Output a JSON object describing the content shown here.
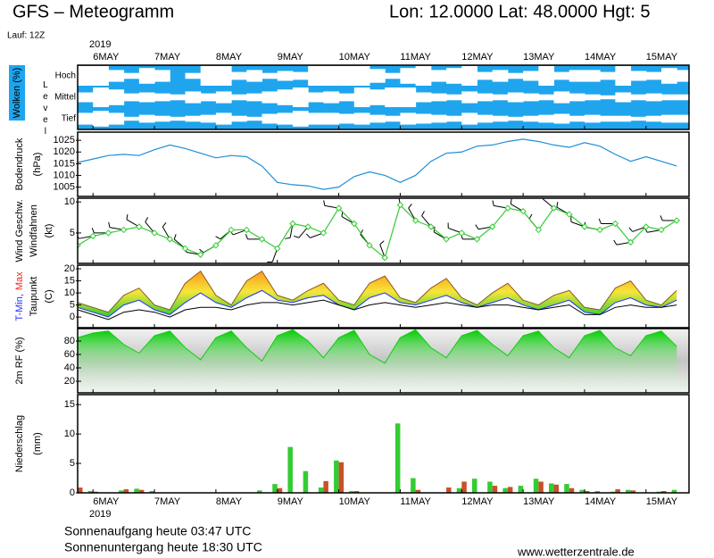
{
  "header": {
    "title": "GFS – Meteogramm",
    "location": "Lon: 12.0000 Lat: 48.0000 Hgt: 5",
    "run": "Lauf: 12Z",
    "year": "2019"
  },
  "footer": {
    "sunrise": "Sonnenaufgang heute 03:47 UTC",
    "sunset": "Sonnenuntergang heute 18:30 UTC",
    "source": "www.wetterzentrale.de"
  },
  "time": {
    "x": [
      -0.25,
      0,
      0.25,
      0.5,
      0.75,
      1,
      1.25,
      1.5,
      1.75,
      2,
      2.25,
      2.5,
      2.75,
      3,
      3.25,
      3.5,
      3.75,
      4,
      4.25,
      4.5,
      4.75,
      5,
      5.25,
      5.5,
      5.75,
      6,
      6.25,
      6.5,
      6.75,
      7,
      7.25,
      7.5,
      7.75,
      8,
      8.25,
      8.5,
      8.75,
      9,
      9.25,
      9.5
    ],
    "xlim": [
      -0.25,
      9.7
    ],
    "xticks": [
      {
        "value": 0,
        "label": "6MAY"
      },
      {
        "value": 1,
        "label": "7MAY"
      },
      {
        "value": 2,
        "label": "8MAY"
      },
      {
        "value": 3,
        "label": "9MAY"
      },
      {
        "value": 4,
        "label": "10MAY"
      },
      {
        "value": 5,
        "label": "11MAY"
      },
      {
        "value": 6,
        "label": "12MAY"
      },
      {
        "value": 7,
        "label": "13MAY"
      },
      {
        "value": 8,
        "label": "14MAY"
      },
      {
        "value": 9,
        "label": "15MAY"
      }
    ]
  },
  "chart_data": [
    {
      "type": "clouds",
      "ylabel": "Wolken (%)",
      "ylabel2": "Level",
      "color": "#1ea5ee",
      "cloud_color": "#ffffff",
      "ylim": [
        0,
        100
      ],
      "levels": [
        {
          "name": "Hoch",
          "values": [
            100,
            100,
            60,
            30,
            80,
            60,
            0,
            30,
            100,
            100,
            40,
            60,
            30,
            50,
            40,
            100,
            100,
            100,
            100,
            70,
            30,
            80,
            100,
            60,
            80,
            100,
            40,
            60,
            30,
            50,
            100,
            40,
            60,
            60,
            40,
            100,
            50,
            40,
            80,
            60
          ]
        },
        {
          "name": "Mittel",
          "values": [
            50,
            100,
            80,
            40,
            50,
            40,
            30,
            60,
            40,
            60,
            30,
            40,
            60,
            80,
            100,
            50,
            60,
            40,
            100,
            80,
            100,
            100,
            50,
            40,
            30,
            60,
            40,
            30,
            50,
            40,
            30,
            60,
            40,
            30,
            20,
            50,
            30,
            40,
            30,
            30
          ]
        },
        {
          "name": "Tief",
          "values": [
            60,
            80,
            60,
            20,
            40,
            30,
            20,
            30,
            40,
            60,
            30,
            20,
            50,
            60,
            80,
            60,
            60,
            50,
            60,
            40,
            30,
            60,
            50,
            40,
            30,
            60,
            40,
            30,
            20,
            30,
            40,
            50,
            30,
            40,
            30,
            30,
            20,
            30,
            40,
            40
          ]
        }
      ]
    },
    {
      "type": "line",
      "ylabel": "Bodendruck",
      "yunit": "(hPa)",
      "ylim": [
        1001,
        1028.5
      ],
      "yticks": [
        1005,
        1010,
        1015,
        1020,
        1025
      ],
      "series": [
        {
          "color": "#1e8fd6",
          "values": [
            1015.5,
            1017,
            1018.5,
            1019,
            1018.5,
            1021,
            1023,
            1021.5,
            1019.5,
            1017.5,
            1018.5,
            1018,
            1014,
            1007,
            1006,
            1005.5,
            1004,
            1005,
            1009.5,
            1011.5,
            1010,
            1007,
            1010,
            1016,
            1019.5,
            1020,
            1022.5,
            1023,
            1024.5,
            1025.5,
            1024.5,
            1023,
            1022,
            1024,
            1022.5,
            1019,
            1016,
            1018,
            1016,
            1014
          ]
        }
      ]
    },
    {
      "type": "wind",
      "ylabel": {
        "text": "Wind Geschw.",
        "color": "#22bb22"
      },
      "ylabel2": "Windfahnen",
      "yunit": "(kt)",
      "ylim": [
        0.1,
        10.6
      ],
      "yticks": [
        5,
        10
      ],
      "series": [
        {
          "color": "#33cc33",
          "values": [
            3,
            4.5,
            5,
            5.5,
            6,
            5,
            4,
            2.5,
            1.5,
            3,
            5.5,
            5.5,
            4,
            2.5,
            6.5,
            6,
            5,
            9,
            6.5,
            3,
            1,
            9.5,
            7,
            6,
            4,
            5,
            4,
            6,
            9,
            8.5,
            5.5,
            9,
            8,
            6,
            5.5,
            6.5,
            3.5,
            6,
            5.5,
            7
          ]
        }
      ],
      "direction": [
        250,
        260,
        270,
        280,
        300,
        320,
        330,
        310,
        280,
        240,
        230,
        250,
        270,
        200,
        190,
        220,
        250,
        280,
        300,
        320,
        340,
        350,
        330,
        320,
        300,
        290,
        270,
        260,
        280,
        300,
        320,
        310,
        300,
        290,
        280,
        270,
        260,
        250,
        260,
        270
      ]
    },
    {
      "type": "temperature",
      "ylabel": [
        {
          "text": "T-Min,",
          "color": "#2030ff"
        },
        {
          "text": "Max",
          "color": "#ff2020"
        }
      ],
      "ylabel2": "Taupunkt",
      "yunit": "(C)",
      "ylim": [
        -4.4,
        21.5
      ],
      "yticks": [
        0,
        5,
        10,
        15,
        20
      ],
      "series": [
        {
          "color": "#8a5a20",
          "values": [
            6,
            4,
            2,
            9,
            12,
            5,
            3,
            14,
            19,
            9,
            5,
            15,
            19,
            9,
            7,
            11,
            14,
            7,
            5,
            14,
            17,
            8,
            6,
            12,
            16,
            8,
            5,
            10,
            14,
            7,
            5,
            9,
            11,
            4,
            3,
            12,
            15,
            7,
            5,
            11
          ]
        },
        {
          "color": "#2030ff",
          "values": [
            4,
            2,
            0,
            5,
            7,
            3,
            1,
            6,
            10,
            6,
            4,
            8,
            11,
            7,
            6,
            8,
            9,
            5,
            3,
            8,
            10,
            6,
            5,
            7,
            9,
            6,
            4,
            6,
            8,
            5,
            3,
            5,
            7,
            2,
            1,
            6,
            8,
            5,
            4,
            7
          ]
        },
        {
          "color": "#000000",
          "values": [
            3,
            1,
            -1,
            2,
            3,
            2,
            0,
            3,
            4,
            4,
            3,
            5,
            6,
            6,
            5,
            6,
            7,
            5,
            3,
            5,
            6,
            5,
            4,
            5,
            6,
            5,
            4,
            5,
            5,
            4,
            3,
            4,
            5,
            1,
            1,
            4,
            5,
            4,
            4,
            5
          ]
        }
      ]
    },
    {
      "type": "area",
      "ylabel": "2m RF (%)",
      "ylim": [
        2.7,
        98.7
      ],
      "yticks": [
        20,
        40,
        60,
        80
      ],
      "series": [
        {
          "color": "#11cc11",
          "values": [
            85,
            92,
            95,
            75,
            62,
            88,
            95,
            70,
            52,
            85,
            95,
            70,
            50,
            88,
            97,
            80,
            55,
            85,
            96,
            60,
            47,
            85,
            97,
            70,
            55,
            88,
            96,
            75,
            58,
            88,
            95,
            70,
            55,
            88,
            96,
            70,
            58,
            88,
            95,
            72
          ]
        }
      ]
    },
    {
      "type": "bar",
      "ylabel": "Niederschlag",
      "yunit": "(mm)",
      "ylim": [
        0,
        16.7
      ],
      "yticks": [
        0,
        5,
        10,
        15
      ],
      "series": [
        {
          "color": "#33cc33",
          "values": [
            1.0,
            0.3,
            0,
            0.4,
            0.7,
            0.3,
            0,
            0,
            0,
            0,
            0,
            0,
            0.4,
            1.5,
            7.8,
            3.7,
            0.9,
            5.5,
            0.3,
            0,
            0,
            11.8,
            2.5,
            0,
            0,
            0.8,
            2.4,
            1.9,
            0.8,
            1.2,
            2.4,
            1.6,
            1.5,
            0.5,
            0.3,
            0.2,
            0.5,
            0,
            0.2,
            0.5
          ]
        },
        {
          "color": "#c8502a",
          "values": [
            0.9,
            0.2,
            0,
            0.6,
            0.5,
            0,
            0,
            0,
            0,
            0,
            0,
            0,
            0,
            0.8,
            0,
            0,
            2.0,
            5.2,
            0.3,
            0,
            0,
            0,
            0.5,
            0,
            0.9,
            1.9,
            0,
            1.2,
            1.0,
            0,
            1.9,
            1.4,
            0.8,
            0.3,
            0,
            0.6,
            0.4,
            0,
            0.3,
            0
          ]
        }
      ]
    }
  ]
}
